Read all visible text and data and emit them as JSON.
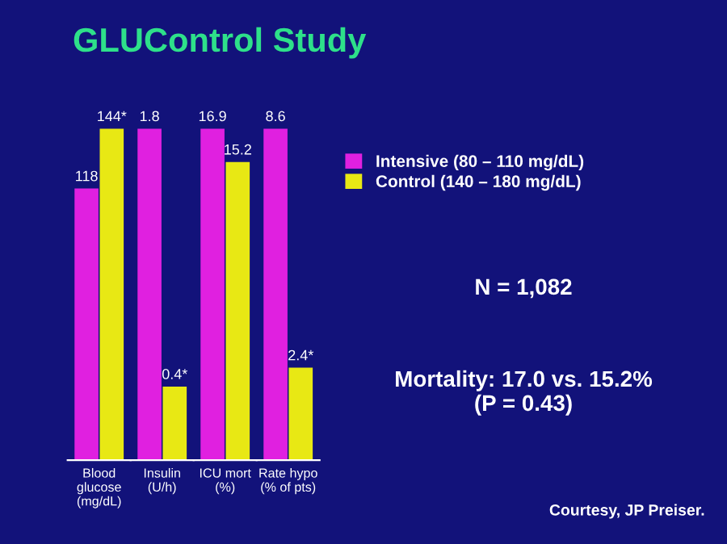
{
  "chart_data": [
    {
      "type": "bar",
      "title": "GLUControl Study",
      "categories": [
        "Blood\nglucose\n(mg/dL)"
      ],
      "tick_labels": "x",
      "series": [
        {
          "color": "#e020e0",
          "values": [
            118
          ],
          "value_labels": [
            "118"
          ]
        },
        {
          "color": "#e8e814",
          "values": [
            144
          ],
          "value_labels": [
            "144*"
          ]
        }
      ]
    },
    {
      "type": "bar",
      "categories": [
        "Insulin\n(U/h)"
      ],
      "tick_labels": "x",
      "series": [
        {
          "color": "#e020e0",
          "values": [
            1.8
          ],
          "value_labels": [
            "1.8"
          ]
        },
        {
          "color": "#e8e814",
          "values": [
            0.4
          ],
          "value_labels": [
            "0.4*"
          ]
        }
      ]
    },
    {
      "type": "bar",
      "categories": [
        "ICU mort\n(%)"
      ],
      "tick_labels": "x",
      "series": [
        {
          "color": "#e020e0",
          "values": [
            16.9
          ],
          "value_labels": [
            "16.9"
          ]
        },
        {
          "color": "#e8e814",
          "values": [
            15.2
          ],
          "value_labels": [
            "15.2"
          ]
        }
      ]
    },
    {
      "type": "bar",
      "categories": [
        "Rate hypo\n(% of pts)"
      ],
      "tick_labels": "x",
      "legend": "right",
      "series": [
        {
          "name": "Intensive (80 – 110 mg/dL)",
          "color": "#e020e0",
          "values": [
            8.6
          ],
          "value_labels": [
            "8.6"
          ]
        },
        {
          "name": "Control (140 – 180 mg/dL)",
          "color": "#e8e814",
          "values": [
            2.4
          ],
          "value_labels": [
            "2.4*"
          ]
        }
      ]
    },
    {
      "type": "other",
      "annotations": [
        "N = 1,082",
        "Mortality: 17.0 vs. 15.2%\n(P = 0.43)",
        "Courtesy, JP Preiser."
      ]
    }
  ]
}
